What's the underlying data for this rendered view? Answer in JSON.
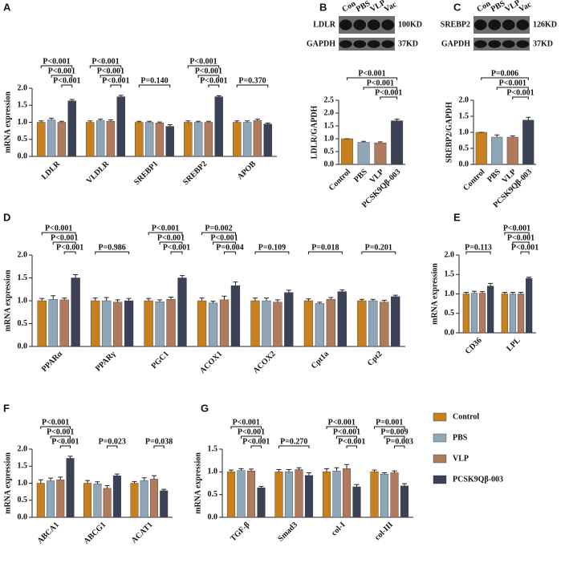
{
  "chart_data": [
    {
      "type": "bar",
      "panel": "A",
      "ylabel": "mRNA expression",
      "categories": [
        "LDLR",
        "VLDLR",
        "SREBP1",
        "SREBP2",
        "APOB"
      ],
      "series": [
        {
          "color": "#c8801e",
          "values": [
            1.0,
            1.0,
            1.0,
            1.0,
            1.0
          ],
          "errors": [
            0.04,
            0.04,
            0.03,
            0.04,
            0.04
          ]
        },
        {
          "color": "#8fa6b6",
          "values": [
            1.07,
            1.05,
            1.0,
            1.0,
            1.0
          ],
          "errors": [
            0.05,
            0.04,
            0.03,
            0.03,
            0.04
          ]
        },
        {
          "color": "#b07a5c",
          "values": [
            1.0,
            1.03,
            0.98,
            1.0,
            1.05
          ],
          "errors": [
            0.03,
            0.04,
            0.03,
            0.03,
            0.04
          ]
        },
        {
          "color": "#3b4256",
          "values": [
            1.63,
            1.75,
            0.88,
            1.75,
            0.95
          ],
          "errors": [
            0.04,
            0.04,
            0.05,
            0.03,
            0.03
          ]
        }
      ],
      "ylim": [
        0,
        2
      ],
      "yticks": [
        {
          "value": 0,
          "label": "0.0"
        },
        {
          "value": 0.5,
          "label": "0.5"
        },
        {
          "value": 1,
          "label": "1.0"
        },
        {
          "value": 1.5,
          "label": "1.5"
        },
        {
          "value": 2,
          "label": "2.0"
        }
      ],
      "annotations": [
        {
          "text": "P<0.001",
          "category": 0,
          "between": [
            0,
            3
          ]
        },
        {
          "text": "P<0.001",
          "category": 0,
          "between": [
            1,
            3
          ]
        },
        {
          "text": "P<0.001",
          "category": 0,
          "between": [
            2,
            3
          ]
        },
        {
          "text": "P<0.001",
          "category": 1,
          "between": [
            0,
            3
          ]
        },
        {
          "text": "P<0.001",
          "category": 1,
          "between": [
            1,
            3
          ]
        },
        {
          "text": "P<0.001",
          "category": 1,
          "between": [
            2,
            3
          ]
        },
        {
          "text": "P=0.140",
          "category": 2,
          "between": [
            0,
            3
          ]
        },
        {
          "text": "P<0.001",
          "category": 3,
          "between": [
            0,
            3
          ]
        },
        {
          "text": "P<0.001",
          "category": 3,
          "between": [
            1,
            3
          ]
        },
        {
          "text": "P<0.001",
          "category": 3,
          "between": [
            2,
            3
          ]
        },
        {
          "text": "P=0.370",
          "category": 4,
          "between": [
            0,
            3
          ]
        }
      ]
    },
    {
      "type": "bar",
      "panel": "B",
      "ylabel": "LDLR/GAPDH",
      "blot": {
        "lanes": [
          "Con",
          "PBS",
          "VLP",
          "Vac"
        ],
        "rows": [
          {
            "protein": "LDLR",
            "size": "100KD"
          },
          {
            "protein": "GAPDH",
            "size": "37KD"
          }
        ]
      },
      "categories": [
        "Control",
        "PBS",
        "VLP",
        "PCSK9Qβ-003"
      ],
      "values": [
        1.0,
        0.86,
        0.84,
        1.7
      ],
      "errors": [
        0.0,
        0.04,
        0.04,
        0.06
      ],
      "colors": [
        "#c8801e",
        "#8fa6b6",
        "#b07a5c",
        "#3b4256"
      ],
      "ylim": [
        0,
        2.5
      ],
      "yticks": [
        {
          "value": 0,
          "label": "0.0"
        },
        {
          "value": 0.5,
          "label": "0.5"
        },
        {
          "value": 1,
          "label": "1.0"
        },
        {
          "value": 1.5,
          "label": "1.5"
        },
        {
          "value": 2,
          "label": "2.0"
        },
        {
          "value": 2.5,
          "label": "2.5"
        }
      ],
      "annotations": [
        {
          "text": "P<0.001",
          "between": [
            0,
            3
          ]
        },
        {
          "text": "P<0.001",
          "between": [
            1,
            3
          ]
        },
        {
          "text": "P<0.001",
          "between": [
            2,
            3
          ]
        }
      ]
    },
    {
      "type": "bar",
      "panel": "C",
      "ylabel": "SREBP2/GAPDH",
      "blot": {
        "lanes": [
          "Con",
          "PBS",
          "VLP",
          "Vac"
        ],
        "rows": [
          {
            "protein": "SREBP2",
            "size": "126KD"
          },
          {
            "protein": "GAPDH",
            "size": "37KD"
          }
        ]
      },
      "categories": [
        "Control",
        "PBS",
        "VLP",
        "PCSK9Qβ-003"
      ],
      "values": [
        1.0,
        0.85,
        0.85,
        1.38
      ],
      "errors": [
        0.0,
        0.07,
        0.04,
        0.09
      ],
      "colors": [
        "#c8801e",
        "#8fa6b6",
        "#b07a5c",
        "#3b4256"
      ],
      "ylim": [
        0,
        2
      ],
      "yticks": [
        {
          "value": 0,
          "label": "0.0"
        },
        {
          "value": 0.5,
          "label": "0.5"
        },
        {
          "value": 1,
          "label": "1.0"
        },
        {
          "value": 1.5,
          "label": "1.5"
        },
        {
          "value": 2,
          "label": "2.0"
        }
      ],
      "annotations": [
        {
          "text": "P=0.006",
          "between": [
            0,
            3
          ]
        },
        {
          "text": "P<0.001",
          "between": [
            1,
            3
          ]
        },
        {
          "text": "P<0.001",
          "between": [
            2,
            3
          ]
        }
      ]
    },
    {
      "type": "bar",
      "panel": "D",
      "ylabel": "mRNA expression",
      "categories": [
        "PPARα",
        "PPARγ",
        "PGC1",
        "ACOX1",
        "ACOX2",
        "Cpt1a",
        "Cpt2"
      ],
      "series": [
        {
          "color": "#c8801e",
          "values": [
            1.0,
            1.0,
            1.0,
            1.0,
            1.0,
            1.0,
            1.0
          ],
          "errors": [
            0.05,
            0.06,
            0.05,
            0.06,
            0.06,
            0.04,
            0.03
          ]
        },
        {
          "color": "#8fa6b6",
          "values": [
            1.03,
            1.0,
            0.98,
            0.95,
            1.0,
            0.94,
            1.0
          ],
          "errors": [
            0.08,
            0.07,
            0.04,
            0.04,
            0.06,
            0.03,
            0.03
          ]
        },
        {
          "color": "#b07a5c",
          "values": [
            1.02,
            0.97,
            1.03,
            1.02,
            0.97,
            1.03,
            0.97
          ],
          "errors": [
            0.04,
            0.05,
            0.05,
            0.08,
            0.05,
            0.04,
            0.04
          ]
        },
        {
          "color": "#3b4256",
          "values": [
            1.5,
            1.0,
            1.5,
            1.33,
            1.18,
            1.2,
            1.09
          ],
          "errors": [
            0.07,
            0.05,
            0.05,
            0.08,
            0.05,
            0.04,
            0.03
          ]
        }
      ],
      "ylim": [
        0,
        2
      ],
      "yticks": [
        {
          "value": 0,
          "label": "0.0"
        },
        {
          "value": 0.5,
          "label": "0.5"
        },
        {
          "value": 1,
          "label": "1.0"
        },
        {
          "value": 1.5,
          "label": "1.5"
        },
        {
          "value": 2,
          "label": "2.0"
        }
      ],
      "annotations": [
        {
          "text": "P<0.001",
          "category": 0,
          "between": [
            0,
            3
          ]
        },
        {
          "text": "P<0.001",
          "category": 0,
          "between": [
            1,
            3
          ]
        },
        {
          "text": "P<0.001",
          "category": 0,
          "between": [
            2,
            3
          ]
        },
        {
          "text": "P=0.986",
          "category": 1,
          "between": [
            0,
            3
          ]
        },
        {
          "text": "P<0.001",
          "category": 2,
          "between": [
            0,
            3
          ]
        },
        {
          "text": "P<0.001",
          "category": 2,
          "between": [
            1,
            3
          ]
        },
        {
          "text": "P<0.001",
          "category": 2,
          "between": [
            2,
            3
          ]
        },
        {
          "text": "P=0.002",
          "category": 3,
          "between": [
            0,
            3
          ]
        },
        {
          "text": "P<0.001",
          "category": 3,
          "between": [
            1,
            3
          ]
        },
        {
          "text": "P=0.004",
          "category": 3,
          "between": [
            2,
            3
          ]
        },
        {
          "text": "P=0.109",
          "category": 4,
          "between": [
            0,
            3
          ]
        },
        {
          "text": "P=0.018",
          "category": 5,
          "between": [
            0,
            3
          ]
        },
        {
          "text": "P=0.201",
          "category": 6,
          "between": [
            0,
            3
          ]
        }
      ]
    },
    {
      "type": "bar",
      "panel": "E",
      "ylabel": "mRNA expression",
      "categories": [
        "CD36",
        "LPL"
      ],
      "series": [
        {
          "color": "#c8801e",
          "values": [
            1.0,
            1.0
          ],
          "errors": [
            0.04,
            0.04
          ]
        },
        {
          "color": "#8fa6b6",
          "values": [
            1.02,
            1.0
          ],
          "errors": [
            0.05,
            0.04
          ]
        },
        {
          "color": "#b07a5c",
          "values": [
            1.02,
            1.0
          ],
          "errors": [
            0.04,
            0.04
          ]
        },
        {
          "color": "#3b4256",
          "values": [
            1.2,
            1.4
          ],
          "errors": [
            0.07,
            0.03
          ]
        }
      ],
      "ylim": [
        0,
        2
      ],
      "yticks": [
        {
          "value": 0,
          "label": "0.0"
        },
        {
          "value": 0.5,
          "label": "0.5"
        },
        {
          "value": 1,
          "label": "1.0"
        },
        {
          "value": 1.5,
          "label": "1.5"
        },
        {
          "value": 2,
          "label": "2.0"
        }
      ],
      "annotations": [
        {
          "text": "P=0.113",
          "category": 0,
          "between": [
            0,
            3
          ]
        },
        {
          "text": "P<0.001",
          "category": 1,
          "between": [
            0,
            3
          ]
        },
        {
          "text": "P<0.001",
          "category": 1,
          "between": [
            1,
            3
          ]
        },
        {
          "text": "P<0.001",
          "category": 1,
          "between": [
            2,
            3
          ]
        }
      ]
    },
    {
      "type": "bar",
      "panel": "F",
      "ylabel": "mRNA expression",
      "categories": [
        "ABCA1",
        "ABCG1",
        "ACAT1"
      ],
      "series": [
        {
          "color": "#c8801e",
          "values": [
            1.0,
            1.0,
            1.0
          ],
          "errors": [
            0.1,
            0.08,
            0.05
          ]
        },
        {
          "color": "#8fa6b6",
          "values": [
            1.07,
            0.98,
            1.08
          ],
          "errors": [
            0.08,
            0.06,
            0.08
          ]
        },
        {
          "color": "#b07a5c",
          "values": [
            1.1,
            0.85,
            1.12
          ],
          "errors": [
            0.08,
            0.08,
            0.1
          ]
        },
        {
          "color": "#3b4256",
          "values": [
            1.73,
            1.22,
            0.78
          ],
          "errors": [
            0.06,
            0.05,
            0.04
          ]
        }
      ],
      "ylim": [
        0,
        2
      ],
      "yticks": [
        {
          "value": 0,
          "label": "0.0"
        },
        {
          "value": 0.5,
          "label": "0.5"
        },
        {
          "value": 1,
          "label": "1.0"
        },
        {
          "value": 1.5,
          "label": "1.5"
        },
        {
          "value": 2,
          "label": "2.0"
        }
      ],
      "annotations": [
        {
          "text": "P<0.001",
          "category": 0,
          "between": [
            0,
            3
          ]
        },
        {
          "text": "P<0.001",
          "category": 0,
          "between": [
            1,
            3
          ]
        },
        {
          "text": "P<0.001",
          "category": 0,
          "between": [
            2,
            3
          ]
        },
        {
          "text": "P=0.023",
          "category": 1,
          "between": [
            2,
            3
          ]
        },
        {
          "text": "P=0.038",
          "category": 2,
          "between": [
            2,
            3
          ]
        }
      ]
    },
    {
      "type": "bar",
      "panel": "G",
      "ylabel": "mRNA expression",
      "legend": "right",
      "categories": [
        "TGF-β",
        "Smad3",
        "col-I",
        "col-III"
      ],
      "series": [
        {
          "name": "Control",
          "color": "#c8801e",
          "values": [
            1.0,
            1.0,
            1.0,
            1.0
          ],
          "errors": [
            0.04,
            0.05,
            0.07,
            0.04
          ]
        },
        {
          "name": "PBS",
          "color": "#8fa6b6",
          "values": [
            1.03,
            1.0,
            1.02,
            0.95
          ],
          "errors": [
            0.04,
            0.05,
            0.07,
            0.03
          ]
        },
        {
          "name": "VLP",
          "color": "#b07a5c",
          "values": [
            1.02,
            1.05,
            1.07,
            0.98
          ],
          "errors": [
            0.04,
            0.04,
            0.09,
            0.04
          ]
        },
        {
          "name": "PCSK9Qβ-003",
          "color": "#3b4256",
          "values": [
            0.65,
            0.92,
            0.67,
            0.69
          ],
          "errors": [
            0.03,
            0.06,
            0.05,
            0.05
          ]
        }
      ],
      "ylim": [
        0,
        1.5
      ],
      "yticks": [
        {
          "value": 0,
          "label": "0.0"
        },
        {
          "value": 0.5,
          "label": "0.5"
        },
        {
          "value": 1,
          "label": "1.0"
        },
        {
          "value": 1.5,
          "label": "1.5"
        }
      ],
      "annotations": [
        {
          "text": "P<0.001",
          "category": 0,
          "between": [
            0,
            3
          ]
        },
        {
          "text": "P<0.001",
          "category": 0,
          "between": [
            1,
            3
          ]
        },
        {
          "text": "P<0.001",
          "category": 0,
          "between": [
            2,
            3
          ]
        },
        {
          "text": "P=0.270",
          "category": 1,
          "between": [
            0,
            3
          ]
        },
        {
          "text": "P<0.001",
          "category": 2,
          "between": [
            0,
            3
          ]
        },
        {
          "text": "P<0.001",
          "category": 2,
          "between": [
            1,
            3
          ]
        },
        {
          "text": "P<0.001",
          "category": 2,
          "between": [
            2,
            3
          ]
        },
        {
          "text": "P=0.001",
          "category": 3,
          "between": [
            0,
            3
          ]
        },
        {
          "text": "P=0.009",
          "category": 3,
          "between": [
            1,
            3
          ]
        },
        {
          "text": "P=0.003",
          "category": 3,
          "between": [
            2,
            3
          ]
        }
      ]
    }
  ]
}
